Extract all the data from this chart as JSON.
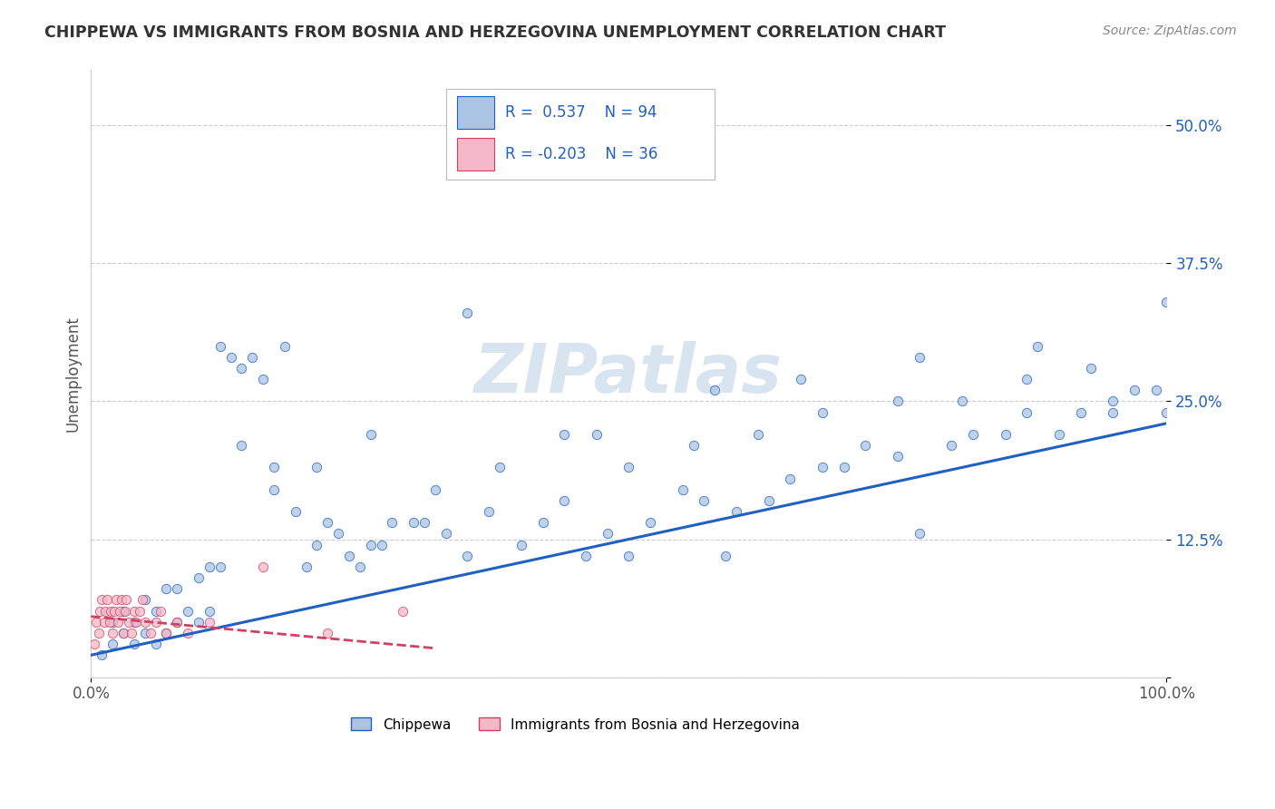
{
  "title": "CHIPPEWA VS IMMIGRANTS FROM BOSNIA AND HERZEGOVINA UNEMPLOYMENT CORRELATION CHART",
  "source": "Source: ZipAtlas.com",
  "ylabel": "Unemployment",
  "xlim": [
    0,
    1.0
  ],
  "ylim": [
    0,
    0.55
  ],
  "yticks": [
    0,
    0.125,
    0.25,
    0.375,
    0.5
  ],
  "ytick_labels": [
    "",
    "12.5%",
    "25.0%",
    "37.5%",
    "50.0%"
  ],
  "xticks": [
    0,
    1.0
  ],
  "xtick_labels": [
    "0.0%",
    "100.0%"
  ],
  "chippewa_R": 0.537,
  "chippewa_N": 94,
  "bosnia_R": -0.203,
  "bosnia_N": 36,
  "chippewa_color": "#aac4e2",
  "bosnia_color": "#f5b8c8",
  "chippewa_line_color": "#2060c0",
  "bosnia_line_color": "#d04060",
  "background_color": "#ffffff",
  "grid_color": "#cccccc",
  "title_color": "#333333",
  "legend_text_color": "#2060c0",
  "watermark_color": "#d8e4f0",
  "chippewa_line_intercept": 0.02,
  "chippewa_line_slope": 0.21,
  "bosnia_line_intercept": 0.055,
  "bosnia_line_slope": -0.09,
  "bosnia_line_xmax": 0.32,
  "chippewa_x": [
    0.01,
    0.02,
    0.02,
    0.03,
    0.03,
    0.04,
    0.04,
    0.05,
    0.05,
    0.06,
    0.06,
    0.07,
    0.07,
    0.08,
    0.08,
    0.09,
    0.1,
    0.1,
    0.11,
    0.11,
    0.12,
    0.12,
    0.13,
    0.14,
    0.15,
    0.16,
    0.17,
    0.18,
    0.19,
    0.2,
    0.21,
    0.22,
    0.23,
    0.24,
    0.25,
    0.26,
    0.27,
    0.28,
    0.3,
    0.31,
    0.33,
    0.35,
    0.37,
    0.4,
    0.42,
    0.44,
    0.46,
    0.48,
    0.5,
    0.52,
    0.55,
    0.57,
    0.59,
    0.6,
    0.63,
    0.65,
    0.68,
    0.7,
    0.72,
    0.75,
    0.77,
    0.8,
    0.82,
    0.85,
    0.87,
    0.9,
    0.92,
    0.95,
    0.97,
    1.0,
    0.14,
    0.17,
    0.21,
    0.26,
    0.32,
    0.38,
    0.44,
    0.5,
    0.56,
    0.62,
    0.68,
    0.75,
    0.81,
    0.87,
    0.93,
    0.99,
    0.35,
    0.47,
    0.58,
    0.66,
    0.77,
    0.88,
    0.95,
    1.0
  ],
  "chippewa_y": [
    0.02,
    0.03,
    0.05,
    0.04,
    0.06,
    0.03,
    0.05,
    0.04,
    0.07,
    0.03,
    0.06,
    0.04,
    0.08,
    0.05,
    0.08,
    0.06,
    0.05,
    0.09,
    0.06,
    0.1,
    0.1,
    0.3,
    0.29,
    0.28,
    0.29,
    0.27,
    0.19,
    0.3,
    0.15,
    0.1,
    0.12,
    0.14,
    0.13,
    0.11,
    0.1,
    0.12,
    0.12,
    0.14,
    0.14,
    0.14,
    0.13,
    0.11,
    0.15,
    0.12,
    0.14,
    0.16,
    0.11,
    0.13,
    0.11,
    0.14,
    0.17,
    0.16,
    0.11,
    0.15,
    0.16,
    0.18,
    0.19,
    0.19,
    0.21,
    0.2,
    0.13,
    0.21,
    0.22,
    0.22,
    0.24,
    0.22,
    0.24,
    0.25,
    0.26,
    0.24,
    0.21,
    0.17,
    0.19,
    0.22,
    0.17,
    0.19,
    0.22,
    0.19,
    0.21,
    0.22,
    0.24,
    0.25,
    0.25,
    0.27,
    0.28,
    0.26,
    0.33,
    0.22,
    0.26,
    0.27,
    0.29,
    0.3,
    0.24,
    0.34
  ],
  "bosnia_x": [
    0.003,
    0.005,
    0.007,
    0.008,
    0.01,
    0.012,
    0.013,
    0.015,
    0.017,
    0.018,
    0.02,
    0.022,
    0.023,
    0.025,
    0.027,
    0.028,
    0.03,
    0.032,
    0.033,
    0.035,
    0.038,
    0.04,
    0.042,
    0.045,
    0.048,
    0.05,
    0.055,
    0.06,
    0.065,
    0.07,
    0.08,
    0.09,
    0.11,
    0.16,
    0.22,
    0.29
  ],
  "bosnia_y": [
    0.03,
    0.05,
    0.04,
    0.06,
    0.07,
    0.05,
    0.06,
    0.07,
    0.05,
    0.06,
    0.04,
    0.06,
    0.07,
    0.05,
    0.06,
    0.07,
    0.04,
    0.06,
    0.07,
    0.05,
    0.04,
    0.06,
    0.05,
    0.06,
    0.07,
    0.05,
    0.04,
    0.05,
    0.06,
    0.04,
    0.05,
    0.04,
    0.05,
    0.1,
    0.04,
    0.06
  ]
}
